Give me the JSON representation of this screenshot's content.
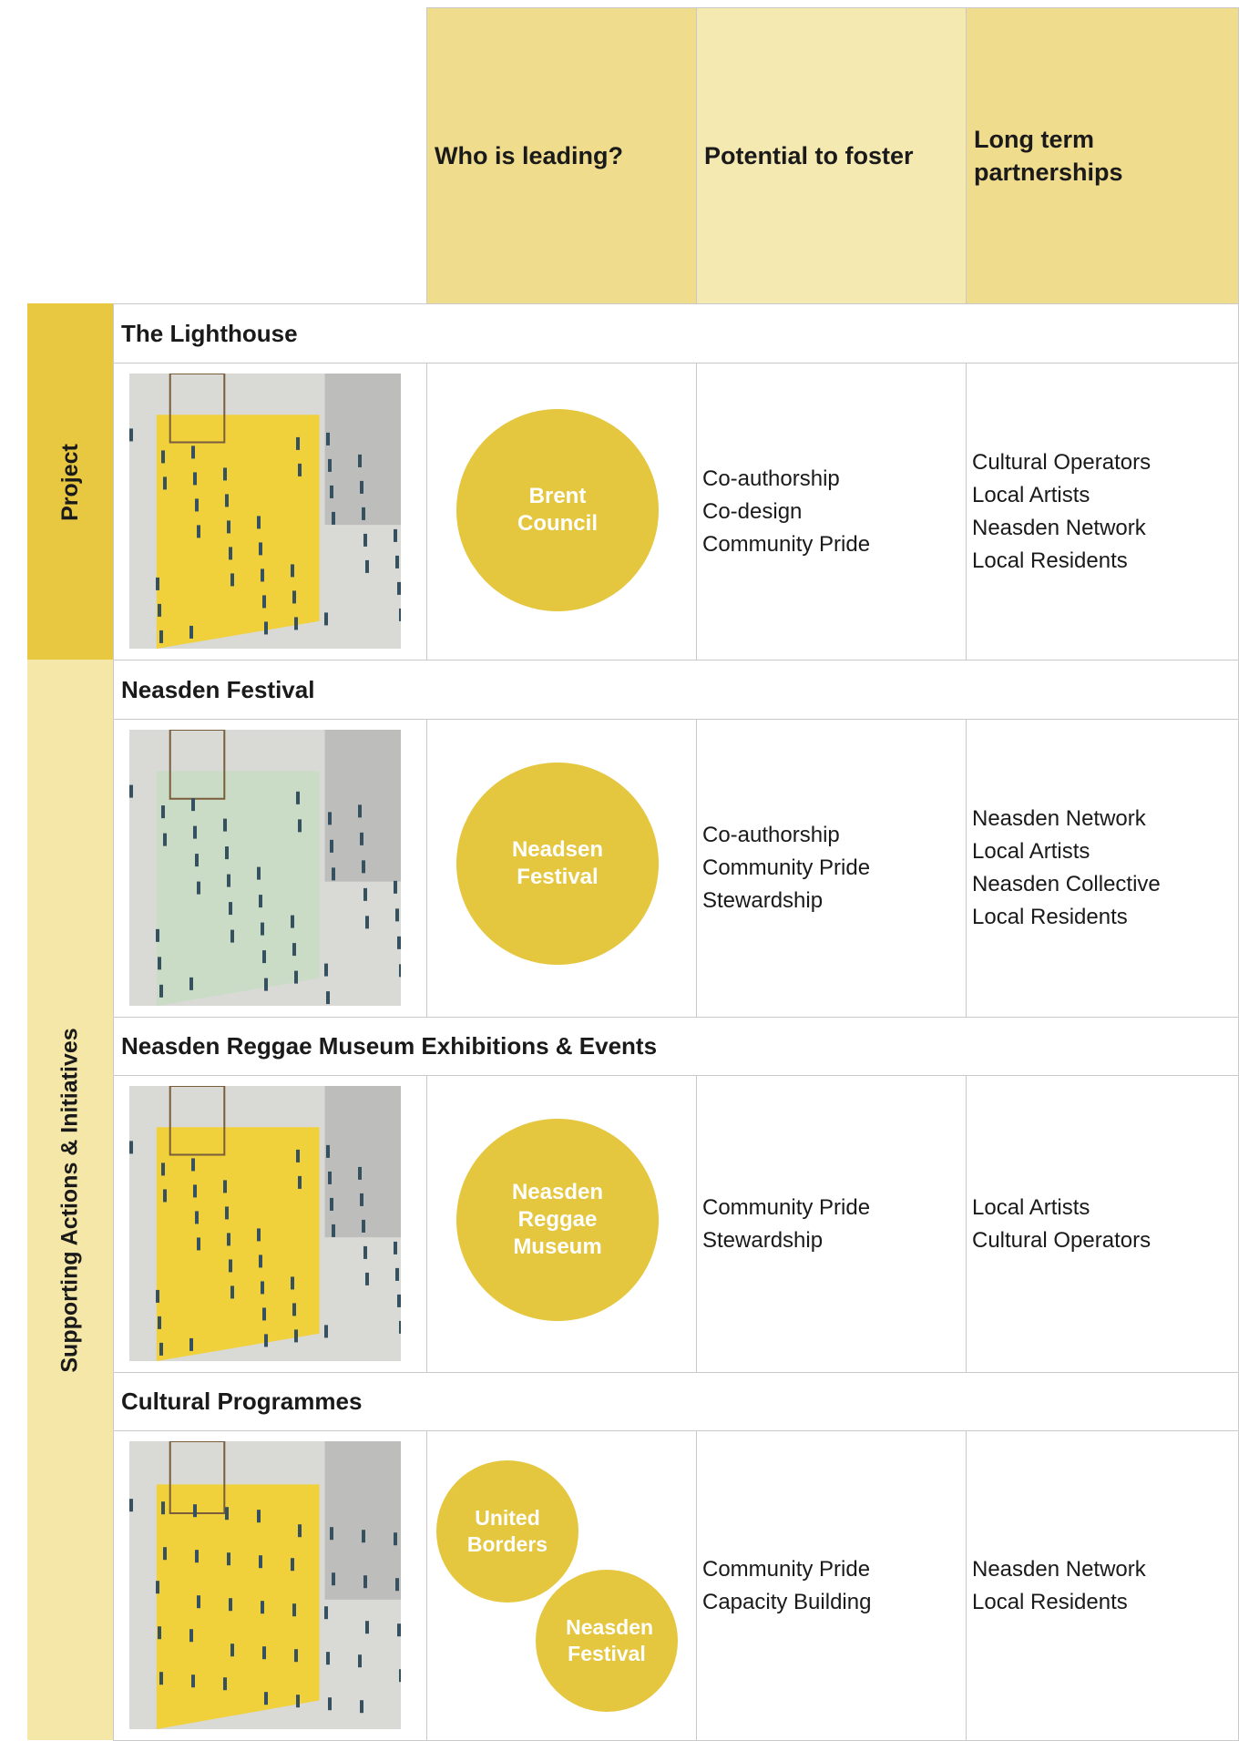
{
  "header": {
    "columns": [
      "Who is leading?",
      "Potential to foster",
      "Long term partnerships"
    ]
  },
  "groups": [
    {
      "label": "Project"
    },
    {
      "label": "Supporting Actions & Initiatives"
    }
  ],
  "rows": [
    {
      "title": "The Lighthouse",
      "leaders": [
        "Brent Council"
      ],
      "foster": [
        "Co-authorship",
        "Co-design",
        "Community Pride"
      ],
      "partners": [
        "Cultural Operators",
        "Local Artists",
        "Neasden Network",
        "Local Residents"
      ]
    },
    {
      "title": "Neasden Festival",
      "leaders": [
        "Neadsen Festival"
      ],
      "foster": [
        "Co-authorship",
        "Community Pride",
        "Stewardship"
      ],
      "partners": [
        "Neasden Network",
        "Local Artists",
        "Neasden Collective",
        "Local Residents"
      ]
    },
    {
      "title": "Neasden Reggae Museum Exhibitions & Events",
      "leaders": [
        "Neasden Reggae Museum"
      ],
      "foster": [
        "Community Pride",
        "Stewardship"
      ],
      "partners": [
        "Local Artists",
        "Cultural Operators"
      ]
    },
    {
      "title": "Cultural Programmes",
      "leaders": [
        "United Borders",
        "Neasden Festival"
      ],
      "foster": [
        "Community Pride",
        "Capacity Building"
      ],
      "partners": [
        "Neasden Network",
        "Local Residents"
      ]
    }
  ]
}
